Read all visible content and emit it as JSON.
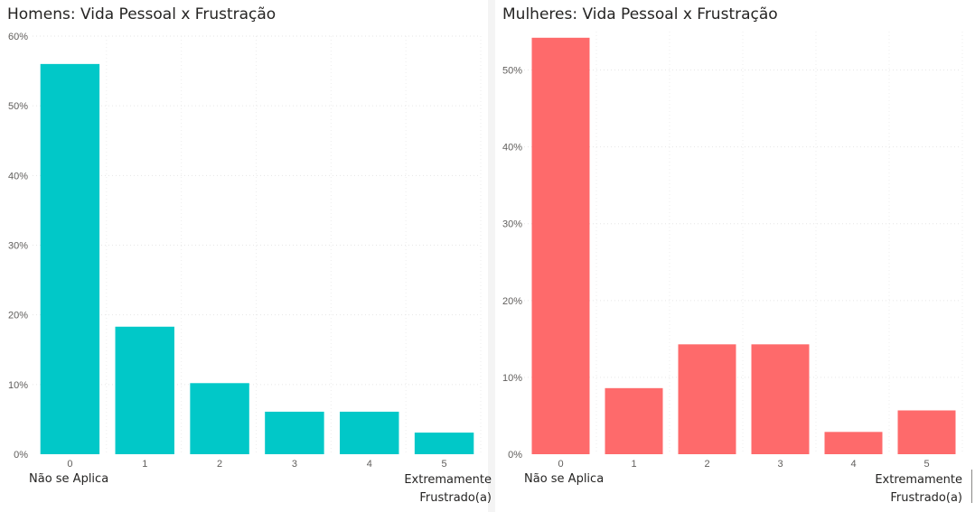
{
  "chart_data": [
    {
      "type": "bar",
      "title": "Homens: Vida Pessoal x Frustração",
      "categories": [
        "0",
        "1",
        "2",
        "3",
        "4",
        "5"
      ],
      "values": [
        56.0,
        18.3,
        10.2,
        6.1,
        6.1,
        3.1
      ],
      "value_unit": "%",
      "ylim": [
        0,
        60
      ],
      "yticks": [
        "0%",
        "10%",
        "20%",
        "30%",
        "40%",
        "50%",
        "60%"
      ],
      "grid": true,
      "color": "#01c8c8",
      "x_min_note": "Não se Aplica",
      "x_max_note_1": "Extremamente",
      "x_max_note_2": "Frustrado(a)"
    },
    {
      "type": "bar",
      "title": "Mulheres: Vida Pessoal x Frustração",
      "categories": [
        "0",
        "1",
        "2",
        "3",
        "4",
        "5"
      ],
      "values": [
        54.2,
        8.6,
        14.3,
        14.3,
        2.9,
        5.7
      ],
      "value_unit": "%",
      "ylim": [
        0,
        55
      ],
      "yticks": [
        "0%",
        "10%",
        "20%",
        "30%",
        "40%",
        "50%"
      ],
      "grid": true,
      "color": "#fe6a6b",
      "x_min_note": "Não se Aplica",
      "x_max_note_1": "Extremamente",
      "x_max_note_2": "Frustrado(a)"
    }
  ]
}
